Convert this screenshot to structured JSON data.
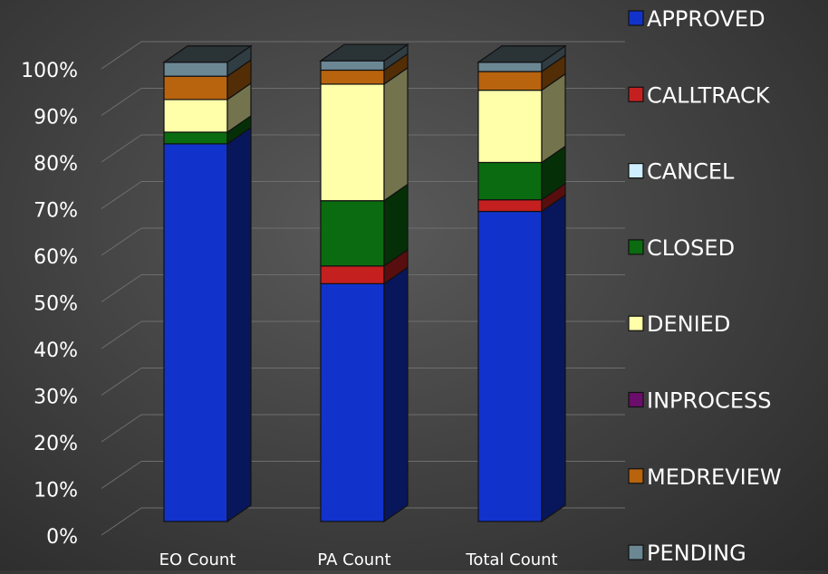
{
  "chart_data": {
    "type": "bar",
    "stacked": true,
    "percent_stacked": true,
    "three_d": true,
    "title": "",
    "xlabel": "",
    "ylabel": "",
    "ylim": [
      0,
      100
    ],
    "yticks": [
      "0%",
      "10%",
      "20%",
      "30%",
      "40%",
      "50%",
      "60%",
      "70%",
      "80%",
      "90%",
      "100%"
    ],
    "grid": true,
    "legend_position": "right",
    "categories": [
      "EO Count",
      "PA Count",
      "Total Count"
    ],
    "series": [
      {
        "name": "APPROVED",
        "color": "#1133cc",
        "values": [
          81.0,
          51.0,
          66.5
        ]
      },
      {
        "name": "CALLTRACK",
        "color": "#c42020",
        "values": [
          0.0,
          3.8,
          2.5
        ]
      },
      {
        "name": "CANCEL",
        "color": "#cfeeff",
        "values": [
          0.0,
          0.0,
          0.0
        ]
      },
      {
        "name": "CLOSED",
        "color": "#0b6b10",
        "values": [
          2.5,
          14.0,
          8.0
        ]
      },
      {
        "name": "DENIED",
        "color": "#ffffaa",
        "values": [
          7.0,
          25.0,
          15.5
        ]
      },
      {
        "name": "INPROCESS",
        "color": "#6b0d6b",
        "values": [
          0.0,
          0.0,
          0.0
        ]
      },
      {
        "name": "MEDREVIEW",
        "color": "#b8640e",
        "values": [
          5.0,
          3.0,
          4.0
        ]
      },
      {
        "name": "PENDING",
        "color": "#6b8794",
        "values": [
          3.0,
          2.0,
          2.0
        ]
      }
    ]
  }
}
